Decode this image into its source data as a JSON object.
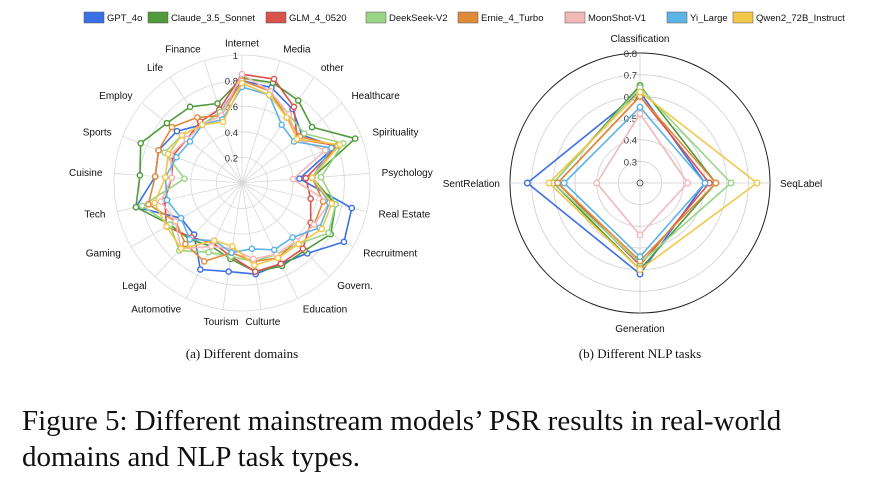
{
  "legend": [
    {
      "name": "GPT_4o",
      "color": "#3b6fe6"
    },
    {
      "name": "Claude_3.5_Sonnet",
      "color": "#4f9a3a"
    },
    {
      "name": "GLM_4_0520",
      "color": "#d9524c"
    },
    {
      "name": "DeekSeek-V2",
      "color": "#98d585"
    },
    {
      "name": "Ernie_4_Turbo",
      "color": "#e08a3a"
    },
    {
      "name": "MoonShot-V1",
      "color": "#f2b8b8"
    },
    {
      "name": "Yi_Large",
      "color": "#5cb3e6"
    },
    {
      "name": "Qwen2_72B_Instruct",
      "color": "#f2c74a"
    }
  ],
  "caption": "Figure 5: Different mainstream models’ PSR results in real-world domains and NLP task types.",
  "chart_data": [
    {
      "type": "radar",
      "subtitle": "(a) Different domains",
      "rlim": [
        0,
        1
      ],
      "rticks": [
        "0.2",
        "0.4",
        "0.6",
        "0.8",
        "1"
      ],
      "categories": [
        "Internet",
        "Media",
        "other",
        "Healthcare",
        "Spirituality",
        "Psychology",
        "Real Estate",
        "Recruitment",
        "Govern.",
        "Education",
        "Culturte",
        "Tourism",
        "Automotive",
        "Legal",
        "Gaming",
        "Tech",
        "Cuisine",
        "Sports",
        "Employ",
        "Life",
        "Finance"
      ],
      "series": [
        {
          "name": "GPT_4o",
          "values": [
            0.8,
            0.78,
            0.7,
            0.6,
            0.78,
            0.45,
            0.88,
            0.92,
            0.75,
            0.7,
            0.72,
            0.7,
            0.75,
            0.55,
            0.55,
            0.85,
            0.68,
            0.7,
            0.65,
            0.55,
            0.58
          ]
        },
        {
          "name": "Claude_3.5_Sonnet",
          "values": [
            0.82,
            0.82,
            0.78,
            0.7,
            0.95,
            0.55,
            0.75,
            0.8,
            0.72,
            0.72,
            0.7,
            0.6,
            0.55,
            0.6,
            0.65,
            0.85,
            0.8,
            0.85,
            0.75,
            0.72,
            0.65
          ]
        },
        {
          "name": "GLM_4_0520",
          "values": [
            0.85,
            0.85,
            0.72,
            0.55,
            0.8,
            0.5,
            0.55,
            0.62,
            0.7,
            0.7,
            0.7,
            0.58,
            0.52,
            0.58,
            0.68,
            0.62,
            0.55,
            0.58,
            0.55,
            0.58,
            0.6
          ]
        },
        {
          "name": "DeekSeek-V2",
          "values": [
            0.78,
            0.72,
            0.65,
            0.62,
            0.85,
            0.62,
            0.75,
            0.78,
            0.65,
            0.62,
            0.62,
            0.58,
            0.6,
            0.72,
            0.65,
            0.8,
            0.45,
            0.65,
            0.6,
            0.55,
            0.58
          ]
        },
        {
          "name": "Ernie_4_Turbo",
          "values": [
            0.8,
            0.75,
            0.62,
            0.58,
            0.8,
            0.55,
            0.65,
            0.65,
            0.62,
            0.65,
            0.62,
            0.55,
            0.68,
            0.65,
            0.6,
            0.75,
            0.68,
            0.7,
            0.7,
            0.62,
            0.55
          ]
        },
        {
          "name": "MoonShot-V1",
          "values": [
            0.85,
            0.75,
            0.65,
            0.55,
            0.7,
            0.4,
            0.7,
            0.65,
            0.62,
            0.62,
            0.6,
            0.52,
            0.55,
            0.7,
            0.6,
            0.65,
            0.55,
            0.6,
            0.55,
            0.55,
            0.55
          ]
        },
        {
          "name": "Yi_Large",
          "values": [
            0.75,
            0.72,
            0.55,
            0.52,
            0.75,
            0.55,
            0.7,
            0.7,
            0.58,
            0.58,
            0.52,
            0.55,
            0.5,
            0.6,
            0.55,
            0.6,
            0.6,
            0.55,
            0.52,
            0.55,
            0.52
          ]
        },
        {
          "name": "Qwen2_72B_Instruct",
          "values": [
            0.78,
            0.72,
            0.62,
            0.55,
            0.82,
            0.55,
            0.72,
            0.72,
            0.65,
            0.65,
            0.65,
            0.5,
            0.5,
            0.7,
            0.68,
            0.7,
            0.6,
            0.62,
            0.6,
            0.55,
            0.5
          ]
        }
      ]
    },
    {
      "type": "radar",
      "subtitle": "(b) Different NLP tasks",
      "rlim": [
        0.2,
        0.8
      ],
      "rticks": [
        "0.3",
        "0.4",
        "0.5",
        "0.6",
        "0.7",
        "0.8"
      ],
      "categories": [
        "Classification",
        "SeqLabel",
        "Generation",
        "SentRelation"
      ],
      "series": [
        {
          "name": "GPT_4o",
          "values": [
            0.62,
            0.5,
            0.62,
            0.72
          ]
        },
        {
          "name": "Claude_3.5_Sonnet",
          "values": [
            0.65,
            0.55,
            0.6,
            0.6
          ]
        },
        {
          "name": "GLM_4_0520",
          "values": [
            0.6,
            0.52,
            0.58,
            0.58
          ]
        },
        {
          "name": "DeekSeek-V2",
          "values": [
            0.64,
            0.62,
            0.57,
            0.6
          ]
        },
        {
          "name": "Ernie_4_Turbo",
          "values": [
            0.6,
            0.55,
            0.56,
            0.58
          ]
        },
        {
          "name": "MoonShot-V1",
          "values": [
            0.52,
            0.42,
            0.44,
            0.4
          ]
        },
        {
          "name": "Yi_Large",
          "values": [
            0.55,
            0.5,
            0.54,
            0.55
          ]
        },
        {
          "name": "Qwen2_72B_Instruct",
          "values": [
            0.62,
            0.74,
            0.6,
            0.62
          ]
        }
      ]
    }
  ]
}
